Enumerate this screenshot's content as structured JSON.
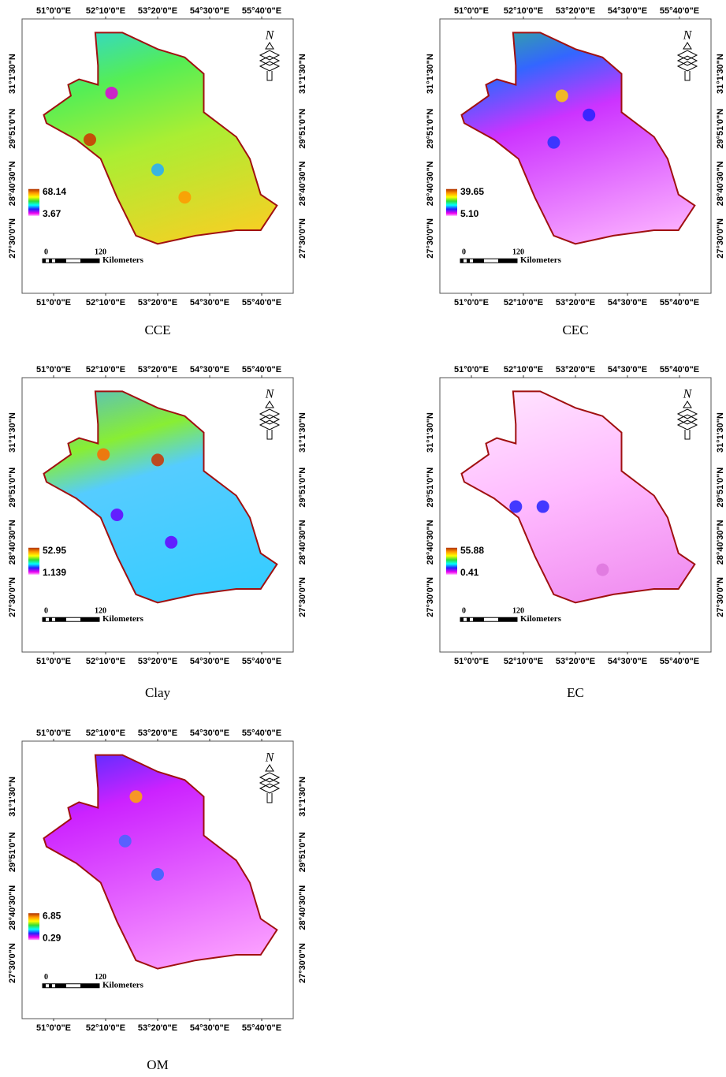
{
  "panels": [
    {
      "caption": "CCE",
      "top_lon_labels": [
        "51°0'0\"E",
        "52°10'0\"E",
        "53°20'0\"E",
        "54°30'0\"E",
        "55°40'0\"E"
      ],
      "bottom_lon_labels": [
        "51°0'0\"E",
        "52°10'0\"E",
        "53°20'0\"E",
        "54°30'0\"E",
        "55°40'0\"E"
      ],
      "left_lat_labels": [
        "31°1'30\"N",
        "29°51'0\"N",
        "28°40'30\"N",
        "27°30'0\"N"
      ],
      "right_lat_labels": [
        "31°1'30\"N",
        "29°51'0\"N",
        "28°40'30\"N",
        "27°30'0\"N"
      ],
      "legend": {
        "max": "68.14",
        "min": "3.67"
      },
      "scale": {
        "start": "0",
        "end": "120",
        "unit": "Kilometers"
      },
      "north": "N"
    },
    {
      "caption": "CEC",
      "top_lon_labels": [
        "51°0'0\"E",
        "52°10'0\"E",
        "53°20'0\"E",
        "54°30'0\"E",
        "55°40'0\"E"
      ],
      "bottom_lon_labels": [
        "51°0'0\"E",
        "52°10'0\"E",
        "53°20'0\"E",
        "54°30'0\"E",
        "55°40'0\"E"
      ],
      "left_lat_labels": [
        "31°1'30\"N",
        "29°51'0\"N",
        "28°40'30\"N",
        "27°30'0\"N"
      ],
      "right_lat_labels": [
        "31°1'30\"N",
        "29°51'0\"N",
        "28°40'30\"N",
        "27°30'0\"N"
      ],
      "legend": {
        "max": "39.65",
        "min": "5.10"
      },
      "scale": {
        "start": "0",
        "end": "120",
        "unit": "Kilometers"
      },
      "north": "N"
    },
    {
      "caption": "Clay",
      "top_lon_labels": [
        "51°0'0\"E",
        "52°10'0\"E",
        "53°20'0\"E",
        "54°30'0\"E",
        "55°40'0\"E"
      ],
      "bottom_lon_labels": [
        "51°0'0\"E",
        "52°10'0\"E",
        "53°20'0\"E",
        "54°30'0\"E",
        "55°40'0\"E"
      ],
      "left_lat_labels": [
        "31°1'30\"N",
        "29°51'0\"N",
        "28°40'30\"N",
        "27°30'0\"N"
      ],
      "right_lat_labels": [
        "31°1'30\"N",
        "29°51'0\"N",
        "28°40'30\"N",
        "27°30'0\"N"
      ],
      "legend": {
        "max": "52.95",
        "min": "1.139"
      },
      "scale": {
        "start": "0",
        "end": "120",
        "unit": "Kilometers"
      },
      "north": "N"
    },
    {
      "caption": "EC",
      "top_lon_labels": [
        "51°0'0\"E",
        "52°10'0\"E",
        "53°20'0\"E",
        "54°30'0\"E",
        "55°40'0\"E"
      ],
      "bottom_lon_labels": [
        "51°0'0\"E",
        "52°10'0\"E",
        "53°20'0\"E",
        "54°30'0\"E",
        "55°40'0\"E"
      ],
      "left_lat_labels": [
        "31°1'30\"N",
        "29°51'0\"N",
        "28°40'30\"N",
        "27°30'0\"N"
      ],
      "right_lat_labels": [
        "31°1'30\"N",
        "29°51'0\"N",
        "28°40'30\"N",
        "27°30'0\"N"
      ],
      "legend": {
        "max": "55.88",
        "min": "0.41"
      },
      "scale": {
        "start": "0",
        "end": "120",
        "unit": "Kilometers"
      },
      "north": "N"
    },
    {
      "caption": "OM",
      "top_lon_labels": [
        "51°0'0\"E",
        "52°10'0\"E",
        "53°20'0\"E",
        "54°30'0\"E",
        "55°40'0\"E"
      ],
      "bottom_lon_labels": [
        "51°0'0\"E",
        "52°10'0\"E",
        "53°20'0\"E",
        "54°30'0\"E",
        "55°40'0\"E"
      ],
      "left_lat_labels": [
        "31°1'30\"N",
        "29°51'0\"N",
        "28°40'30\"N",
        "27°30'0\"N"
      ],
      "right_lat_labels": [
        "31°1'30\"N",
        "29°51'0\"N",
        "28°40'30\"N",
        "27°30'0\"N"
      ],
      "legend": {
        "max": "6.85",
        "min": "0.29"
      },
      "scale": {
        "start": "0",
        "end": "120",
        "unit": "Kilometers"
      },
      "north": "N"
    }
  ]
}
